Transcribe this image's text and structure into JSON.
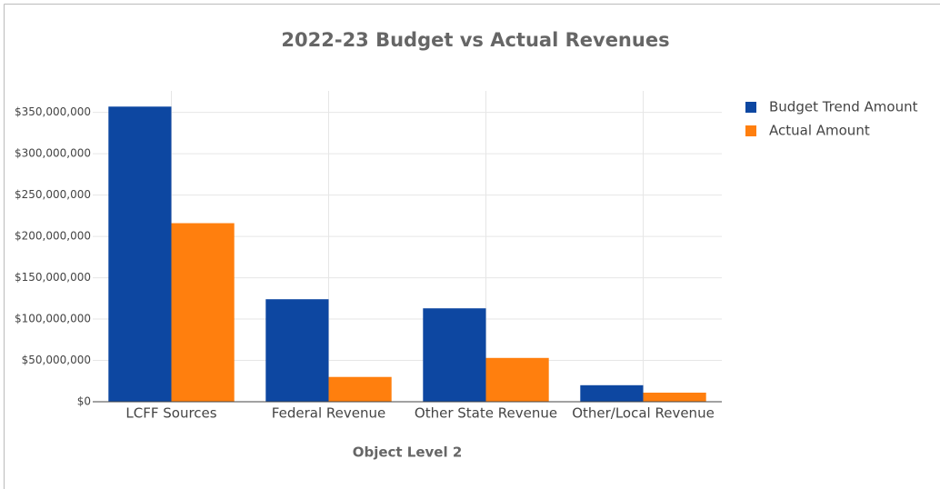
{
  "chart_data": {
    "type": "bar",
    "title": "2022-23 Budget vs Actual Revenues",
    "x_label": "Object Level 2",
    "categories": [
      "LCFF Sources",
      "Federal Revenue",
      "Other State Revenue",
      "Other/Local Revenue"
    ],
    "series": [
      {
        "name": "Budget Trend Amount",
        "color": "#0d47a1",
        "values": [
          357000000,
          124000000,
          113000000,
          20000000
        ]
      },
      {
        "name": "Actual Amount",
        "color": "#ff7f0e",
        "values": [
          216000000,
          30000000,
          53000000,
          11000000
        ]
      }
    ],
    "ylim": [
      0,
      376000000
    ],
    "yticks": [
      {
        "value": 0,
        "label": "$0"
      },
      {
        "value": 50000000,
        "label": "$50,000,000"
      },
      {
        "value": 100000000,
        "label": "$100,000,000"
      },
      {
        "value": 150000000,
        "label": "$150,000,000"
      },
      {
        "value": 200000000,
        "label": "$200,000,000"
      },
      {
        "value": 250000000,
        "label": "$250,000,000"
      },
      {
        "value": 300000000,
        "label": "$300,000,000"
      },
      {
        "value": 350000000,
        "label": "$350,000,000"
      }
    ],
    "grid": true,
    "legend": "right"
  }
}
